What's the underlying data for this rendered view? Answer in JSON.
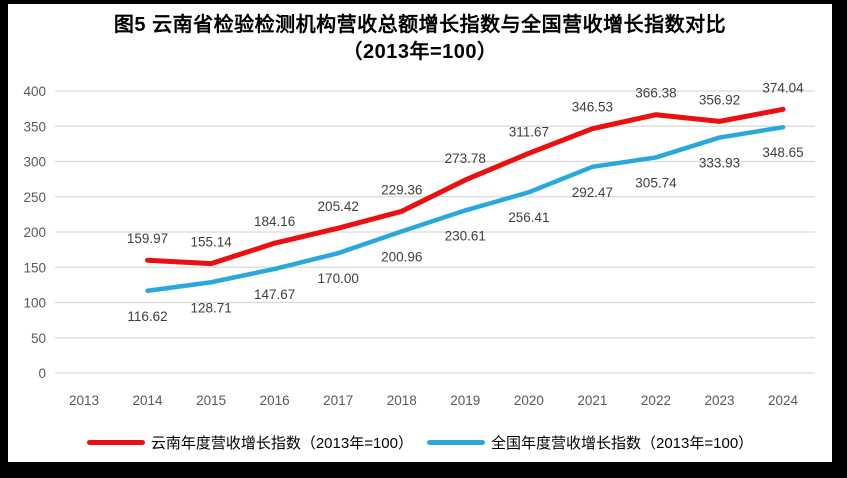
{
  "figure": {
    "title_line1": "图5  云南省检验检测机构营收总额增长指数与全国营收增长指数对比",
    "title_line2": "（2013年=100）"
  },
  "colors": {
    "yunnan_red": "#eb0f0f",
    "national_blue": "#29a8dc",
    "gridline": "#d9d9d9",
    "axis_text": "#595959",
    "data_label_text": "#3f3f3f",
    "frame": "#000000",
    "background": "#ffffff"
  },
  "chart_data": {
    "type": "line",
    "title": "图5 云南省检验检测机构营收总额增长指数与全国营收增长指数对比（2013年=100）",
    "categories": [
      "2013",
      "2014",
      "2015",
      "2016",
      "2017",
      "2018",
      "2019",
      "2020",
      "2021",
      "2022",
      "2023",
      "2024"
    ],
    "ylim": [
      0,
      400
    ],
    "ytick_step": 50,
    "yticks": [
      0,
      50,
      100,
      150,
      200,
      250,
      300,
      350,
      400
    ],
    "grid": true,
    "legend_position": "bottom",
    "series": [
      {
        "name": "云南年度营收增长指数（2013年=100）",
        "color_key": "yunnan_red",
        "label_side": "above",
        "values": [
          null,
          159.97,
          155.14,
          184.16,
          205.42,
          229.36,
          273.78,
          311.67,
          346.53,
          366.38,
          356.92,
          374.04
        ]
      },
      {
        "name": "全国年度营收增长指数（2013年=100）",
        "color_key": "national_blue",
        "label_side": "below",
        "values": [
          null,
          116.62,
          128.71,
          147.67,
          170.0,
          200.96,
          230.61,
          256.41,
          292.47,
          305.74,
          333.93,
          348.65
        ]
      }
    ]
  }
}
